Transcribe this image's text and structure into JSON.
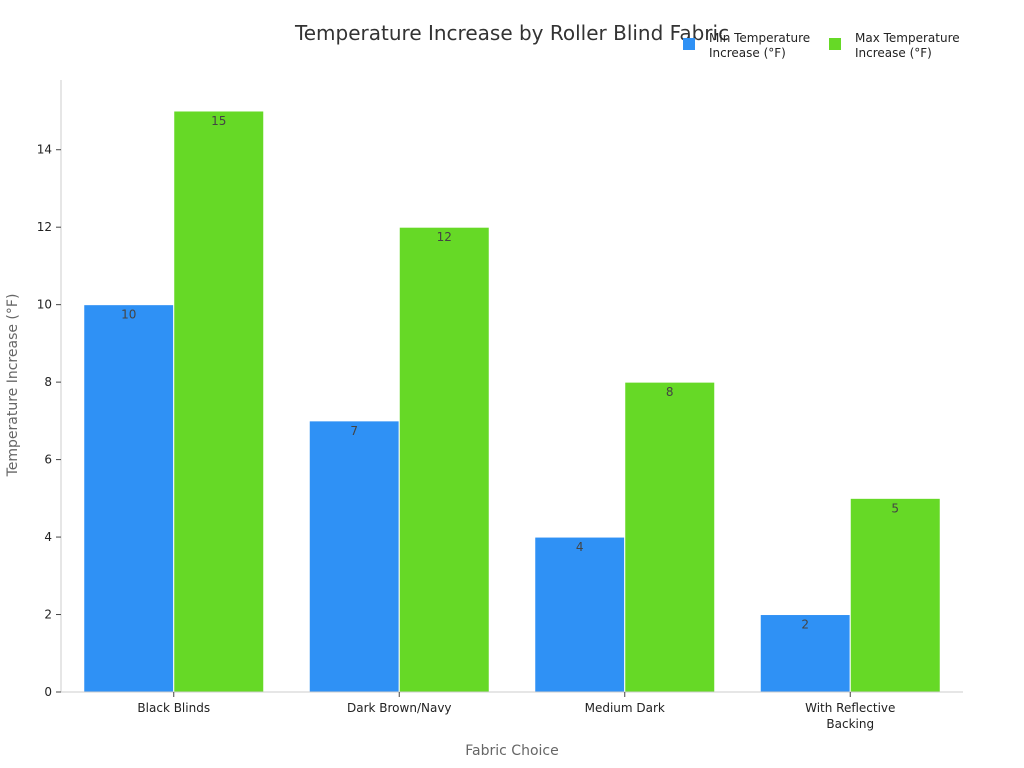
{
  "chart_data": {
    "type": "bar",
    "title": "Temperature Increase by Roller Blind Fabric",
    "xlabel": "Fabric Choice",
    "ylabel": "Temperature Increase (°F)",
    "categories": [
      "Black Blinds",
      "Dark Brown/Navy",
      "Medium Dark",
      "With Reflective Backing"
    ],
    "category_lines": [
      [
        "Black Blinds"
      ],
      [
        "Dark Brown/Navy"
      ],
      [
        "Medium Dark"
      ],
      [
        "With Reflective",
        "Backing"
      ]
    ],
    "series": [
      {
        "name": "Min Temperature Increase (°F)",
        "legend_lines": [
          "Min Temperature",
          "Increase (°F)"
        ],
        "color": "#2f91f5",
        "values": [
          10,
          7,
          4,
          2
        ]
      },
      {
        "name": "Max Temperature Increase (°F)",
        "legend_lines": [
          "Max Temperature",
          "Increase (°F)"
        ],
        "color": "#66d926",
        "values": [
          15,
          12,
          8,
          5
        ]
      }
    ],
    "ylim": [
      0,
      15.8
    ],
    "yticks": [
      0,
      2,
      4,
      6,
      8,
      10,
      12,
      14
    ],
    "legend_position": "top-right",
    "grid": false
  }
}
